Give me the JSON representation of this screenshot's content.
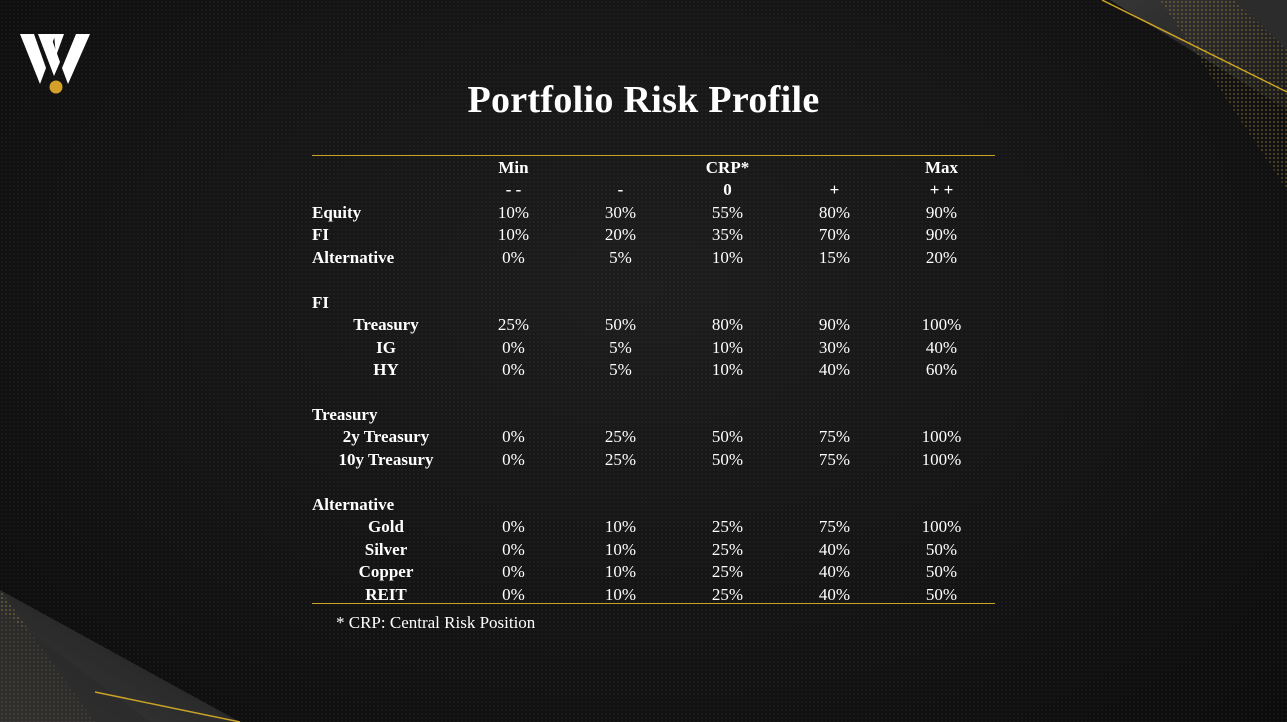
{
  "title": "Portfolio Risk Profile",
  "header": {
    "row1": [
      "Min",
      "",
      "CRP*",
      "",
      "Max"
    ],
    "row2": [
      "- -",
      "-",
      "0",
      "+",
      "+ +"
    ]
  },
  "sections": [
    {
      "heading": "",
      "rows": [
        {
          "label": "Equity",
          "values": [
            "10%",
            "30%",
            "55%",
            "80%",
            "90%"
          ]
        },
        {
          "label": "FI",
          "values": [
            "10%",
            "20%",
            "35%",
            "70%",
            "90%"
          ]
        },
        {
          "label": "Alternative",
          "values": [
            "0%",
            "5%",
            "10%",
            "15%",
            "20%"
          ]
        }
      ]
    },
    {
      "heading": "FI",
      "rows": [
        {
          "label": "Treasury",
          "values": [
            "25%",
            "50%",
            "80%",
            "90%",
            "100%"
          ]
        },
        {
          "label": "IG",
          "values": [
            "0%",
            "5%",
            "10%",
            "30%",
            "40%"
          ]
        },
        {
          "label": "HY",
          "values": [
            "0%",
            "5%",
            "10%",
            "40%",
            "60%"
          ]
        }
      ]
    },
    {
      "heading": "Treasury",
      "rows": [
        {
          "label": "2y Treasury",
          "values": [
            "0%",
            "25%",
            "50%",
            "75%",
            "100%"
          ]
        },
        {
          "label": "10y Treasury",
          "values": [
            "0%",
            "25%",
            "50%",
            "75%",
            "100%"
          ]
        }
      ]
    },
    {
      "heading": "Alternative",
      "rows": [
        {
          "label": "Gold",
          "values": [
            "0%",
            "10%",
            "25%",
            "75%",
            "100%"
          ]
        },
        {
          "label": "Silver",
          "values": [
            "0%",
            "10%",
            "25%",
            "40%",
            "50%"
          ]
        },
        {
          "label": "Copper",
          "values": [
            "0%",
            "10%",
            "25%",
            "40%",
            "50%"
          ]
        },
        {
          "label": "REIT",
          "values": [
            "0%",
            "10%",
            "25%",
            "40%",
            "50%"
          ]
        }
      ]
    }
  ],
  "footnote": "* CRP: Central Risk Position",
  "colors": {
    "accent_gold": "#c9a227",
    "background": "#121212",
    "text": "#ffffff"
  },
  "logo": {
    "icon": "w-monogram-logo-icon"
  }
}
